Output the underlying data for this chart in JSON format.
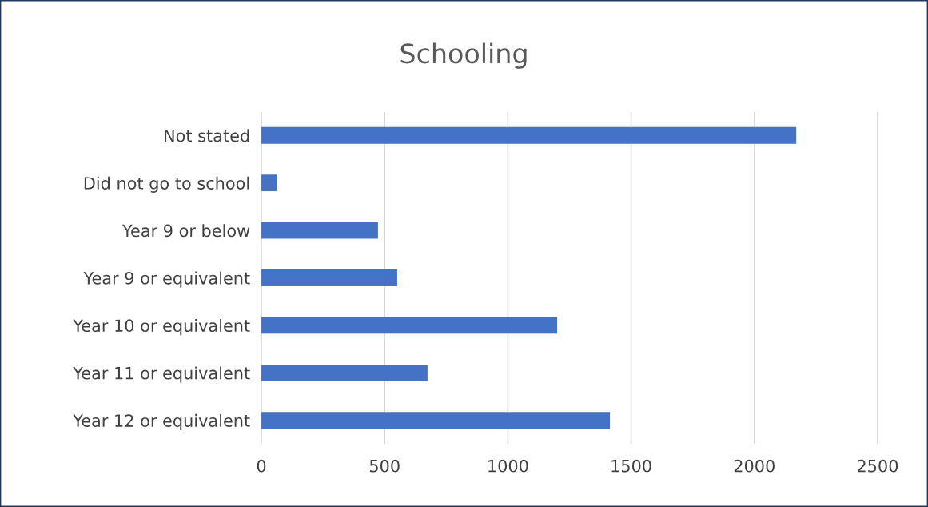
{
  "chart_data": {
    "type": "bar",
    "orientation": "horizontal",
    "title": "Schooling",
    "categories": [
      "Not stated",
      "Did not go to school",
      "Year 9 or below",
      "Year 9 or equivalent",
      "Year 10 or equivalent",
      "Year 11 or equivalent",
      "Year 12 or equivalent"
    ],
    "values": [
      2170,
      62,
      473,
      551,
      1200,
      674,
      1414
    ],
    "color": "#4472c4",
    "xlim": [
      0,
      2500
    ],
    "xticks": [
      0,
      500,
      1000,
      1500,
      2000,
      2500
    ],
    "grid": "x",
    "legend": false
  }
}
